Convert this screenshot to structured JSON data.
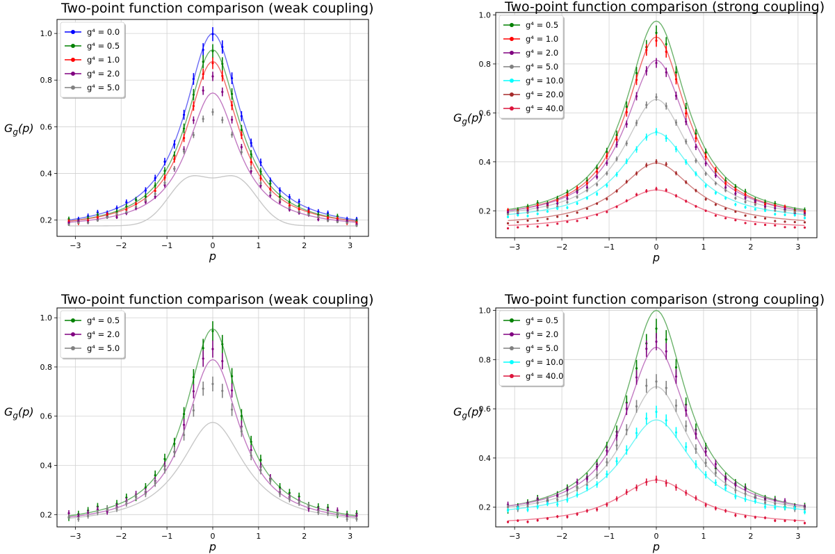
{
  "chart_data": [
    {
      "type": "line",
      "title": "Two-point function comparison (weak coupling)",
      "xlabel": "p",
      "ylabel": "G_g(p)",
      "xlim": [
        -3.4,
        3.4
      ],
      "ylim": [
        0.13,
        1.06
      ],
      "xticks": [
        "−3",
        "−2",
        "−1",
        "0",
        "1",
        "2",
        "3"
      ],
      "yticks": [
        "0.2",
        "0.4",
        "0.6",
        "0.8",
        "1.0"
      ],
      "grid": true,
      "legend_position": "top-left",
      "series": [
        {
          "name": "g⁴ = 0.0",
          "color": "#0000ff",
          "line_color": "#6b6bf5",
          "base": 0.2,
          "peak": 1.0,
          "width": 0.75,
          "meas_base": 0.2,
          "meas_peak": 1.0,
          "err": 0.03
        },
        {
          "name": "g⁴ = 0.5",
          "color": "#008000",
          "line_color": "#6cb36c",
          "base": 0.195,
          "peak": 0.93,
          "width": 0.72,
          "meas_base": 0.195,
          "meas_peak": 0.93,
          "err": 0.03
        },
        {
          "name": "g⁴ = 1.0",
          "color": "#ff0000",
          "line_color": "#f06a6a",
          "base": 0.195,
          "peak": 0.88,
          "width": 0.7,
          "meas_base": 0.19,
          "meas_peak": 0.88,
          "err": 0.025
        },
        {
          "name": "g⁴ = 2.0",
          "color": "#800080",
          "line_color": "#c27ac2",
          "base": 0.19,
          "peak": 0.745,
          "width": 0.68,
          "meas_base": 0.185,
          "meas_peak": 0.81,
          "err": 0.02
        },
        {
          "name": "g⁴ = 5.0",
          "color": "#808080",
          "line_color": "#c8c8c8",
          "base": 0.175,
          "peak": 0.4,
          "width": 0.9,
          "dip": true,
          "meas_base": 0.18,
          "meas_peak": 0.66,
          "err": 0.015
        }
      ]
    },
    {
      "type": "line",
      "title": "Two-point function comparison (strong coupling)",
      "xlabel": "p",
      "ylabel": "G_g(p)",
      "xlim": [
        -3.4,
        3.4
      ],
      "ylim": [
        0.09,
        1.01
      ],
      "xticks": [
        "−3",
        "−2",
        "−1",
        "0",
        "1",
        "2",
        "3"
      ],
      "yticks": [
        "0.2",
        "0.4",
        "0.6",
        "0.8",
        "1.0"
      ],
      "grid": true,
      "legend_position": "top-left",
      "series": [
        {
          "name": "g⁴ = 0.5",
          "color": "#008000",
          "line_color": "#6cb36c",
          "base": 0.205,
          "peak": 0.975,
          "width": 0.78,
          "meas_base": 0.2,
          "meas_peak": 0.93,
          "err": 0.03
        },
        {
          "name": "g⁴ = 1.0",
          "color": "#ff0000",
          "line_color": "#f06a6a",
          "base": 0.2,
          "peak": 0.91,
          "width": 0.78,
          "meas_base": 0.195,
          "meas_peak": 0.9,
          "err": 0.025
        },
        {
          "name": "g⁴ = 2.0",
          "color": "#800080",
          "line_color": "#c27ac2",
          "base": 0.2,
          "peak": 0.815,
          "width": 0.8,
          "meas_base": 0.19,
          "meas_peak": 0.81,
          "err": 0.02
        },
        {
          "name": "g⁴ = 5.0",
          "color": "#808080",
          "line_color": "#c8c8c8",
          "base": 0.195,
          "peak": 0.655,
          "width": 0.85,
          "meas_base": 0.185,
          "meas_peak": 0.66,
          "err": 0.015
        },
        {
          "name": "g⁴ = 10.0",
          "color": "#00ffff",
          "line_color": "#6ff5f5",
          "base": 0.185,
          "peak": 0.52,
          "width": 0.9,
          "meas_base": 0.175,
          "meas_peak": 0.52,
          "err": 0.015
        },
        {
          "name": "g⁴ = 20.0",
          "color": "#a52a2a",
          "line_color": "#cf8080",
          "base": 0.16,
          "peak": 0.395,
          "width": 0.95,
          "meas_base": 0.15,
          "meas_peak": 0.4,
          "err": 0.01
        },
        {
          "name": "g⁴ = 40.0",
          "color": "#dc143c",
          "line_color": "#ee7c92",
          "base": 0.14,
          "peak": 0.285,
          "width": 1.0,
          "meas_base": 0.13,
          "meas_peak": 0.29,
          "err": 0.008
        }
      ]
    },
    {
      "type": "line",
      "title": "Two-point function comparison (weak coupling)",
      "xlabel": "p",
      "ylabel": "G_g(p)",
      "xlim": [
        -3.4,
        3.4
      ],
      "ylim": [
        0.15,
        1.04
      ],
      "xticks": [
        "−3",
        "−2",
        "−1",
        "0",
        "1",
        "2",
        "3"
      ],
      "yticks": [
        "0.2",
        "0.4",
        "0.6",
        "0.8",
        "1.0"
      ],
      "grid": true,
      "legend_position": "top-left",
      "series": [
        {
          "name": "g⁴ = 0.5",
          "color": "#008000",
          "line_color": "#6cb36c",
          "base": 0.195,
          "peak": 0.955,
          "width": 0.72,
          "meas_base": 0.2,
          "meas_peak": 0.95,
          "err": 0.04
        },
        {
          "name": "g⁴ = 2.0",
          "color": "#800080",
          "line_color": "#c27ac2",
          "base": 0.19,
          "peak": 0.83,
          "width": 0.72,
          "meas_base": 0.195,
          "meas_peak": 0.88,
          "err": 0.035
        },
        {
          "name": "g⁴ = 5.0",
          "color": "#808080",
          "line_color": "#c8c8c8",
          "base": 0.185,
          "peak": 0.575,
          "width": 0.85,
          "meas_base": 0.185,
          "meas_peak": 0.74,
          "err": 0.03
        }
      ]
    },
    {
      "type": "line",
      "title": "Two-point function comparison (strong coupling)",
      "xlabel": "p",
      "ylabel": "G_g(p)",
      "xlim": [
        -3.4,
        3.4
      ],
      "ylim": [
        0.12,
        1.01
      ],
      "xticks": [
        "−3",
        "−2",
        "−1",
        "0",
        "1",
        "2",
        "3"
      ],
      "yticks": [
        "0.2",
        "0.4",
        "0.6",
        "0.8",
        "1.0"
      ],
      "grid": true,
      "legend_position": "top-left",
      "series": [
        {
          "name": "g⁴ = 0.5",
          "color": "#008000",
          "line_color": "#6cb36c",
          "base": 0.205,
          "peak": 1.0,
          "width": 0.78,
          "meas_base": 0.2,
          "meas_peak": 0.93,
          "err": 0.04
        },
        {
          "name": "g⁴ = 2.0",
          "color": "#800080",
          "line_color": "#c27ac2",
          "base": 0.205,
          "peak": 0.85,
          "width": 0.8,
          "meas_base": 0.2,
          "meas_peak": 0.88,
          "err": 0.035
        },
        {
          "name": "g⁴ = 5.0",
          "color": "#808080",
          "line_color": "#c8c8c8",
          "base": 0.2,
          "peak": 0.69,
          "width": 0.85,
          "meas_base": 0.195,
          "meas_peak": 0.72,
          "err": 0.03
        },
        {
          "name": "g⁴ = 10.0",
          "color": "#00ffff",
          "line_color": "#6ff5f5",
          "base": 0.19,
          "peak": 0.555,
          "width": 0.9,
          "meas_base": 0.185,
          "meas_peak": 0.58,
          "err": 0.025
        },
        {
          "name": "g⁴ = 40.0",
          "color": "#dc143c",
          "line_color": "#ee7c92",
          "base": 0.145,
          "peak": 0.31,
          "width": 1.0,
          "meas_base": 0.14,
          "meas_peak": 0.31,
          "err": 0.015
        }
      ]
    }
  ]
}
